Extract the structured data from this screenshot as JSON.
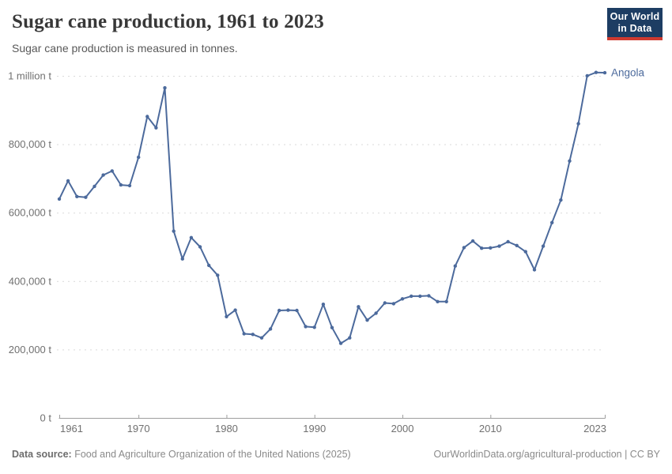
{
  "header": {
    "title": "Sugar cane production, 1961 to 2023",
    "subtitle": "Sugar cane production is measured in tonnes.",
    "logo": {
      "line1": "Our World",
      "line2": "in Data",
      "bg_color": "#1d3d63",
      "accent_color": "#cf3a30"
    }
  },
  "footer": {
    "datasource_label": "Data source:",
    "datasource_text": " Food and Agriculture Organization of the United Nations (2025)",
    "credit": "OurWorldinData.org/agricultural-production | CC BY"
  },
  "chart_data": {
    "type": "line",
    "title": "Sugar cane production, 1961 to 2023",
    "ylabel": "tonnes",
    "xlabel": "",
    "xlim": [
      1961,
      2023
    ],
    "ylim": [
      0,
      1000000
    ],
    "grid": "horizontal-dashed",
    "legend_position": "end-of-line-label",
    "yticks": [
      {
        "value": 0,
        "label": "0 t"
      },
      {
        "value": 200000,
        "label": "200,000 t"
      },
      {
        "value": 400000,
        "label": "400,000 t"
      },
      {
        "value": 600000,
        "label": "600,000 t"
      },
      {
        "value": 800000,
        "label": "800,000 t"
      },
      {
        "value": 1000000,
        "label": "1 million t"
      }
    ],
    "xticks": [
      {
        "value": 1961,
        "label": "1961"
      },
      {
        "value": 1970,
        "label": "1970"
      },
      {
        "value": 1980,
        "label": "1980"
      },
      {
        "value": 1990,
        "label": "1990"
      },
      {
        "value": 2000,
        "label": "2000"
      },
      {
        "value": 2010,
        "label": "2010"
      },
      {
        "value": 2023,
        "label": "2023"
      }
    ],
    "series": [
      {
        "name": "Angola",
        "color": "#4c6a9c",
        "x": [
          1961,
          1962,
          1963,
          1964,
          1965,
          1966,
          1967,
          1968,
          1969,
          1970,
          1971,
          1972,
          1973,
          1974,
          1975,
          1976,
          1977,
          1978,
          1979,
          1980,
          1981,
          1982,
          1983,
          1984,
          1985,
          1986,
          1987,
          1988,
          1989,
          1990,
          1991,
          1992,
          1993,
          1994,
          1995,
          1996,
          1997,
          1998,
          1999,
          2000,
          2001,
          2002,
          2003,
          2004,
          2005,
          2006,
          2007,
          2008,
          2009,
          2010,
          2011,
          2012,
          2013,
          2014,
          2015,
          2016,
          2017,
          2018,
          2019,
          2020,
          2021,
          2022,
          2023
        ],
        "y": [
          640000,
          693000,
          647000,
          645000,
          677000,
          710000,
          722000,
          681000,
          679000,
          762000,
          881000,
          848000,
          965000,
          546000,
          465000,
          527000,
          500000,
          446000,
          417000,
          296000,
          315000,
          246000,
          244000,
          234000,
          260000,
          314000,
          315000,
          314000,
          267000,
          265000,
          332000,
          264000,
          218000,
          234000,
          325000,
          286000,
          306000,
          336000,
          334000,
          348000,
          356000,
          356000,
          357000,
          340000,
          340000,
          444000,
          498000,
          517000,
          496000,
          497000,
          502000,
          515000,
          504000,
          486000,
          433000,
          502000,
          571000,
          637000,
          751000,
          860000,
          1000000,
          1010000,
          1009000
        ]
      }
    ],
    "colors": {
      "grid": "#d9d9d9",
      "axis": "#9e9e9e",
      "tick_text": "#707070"
    }
  }
}
